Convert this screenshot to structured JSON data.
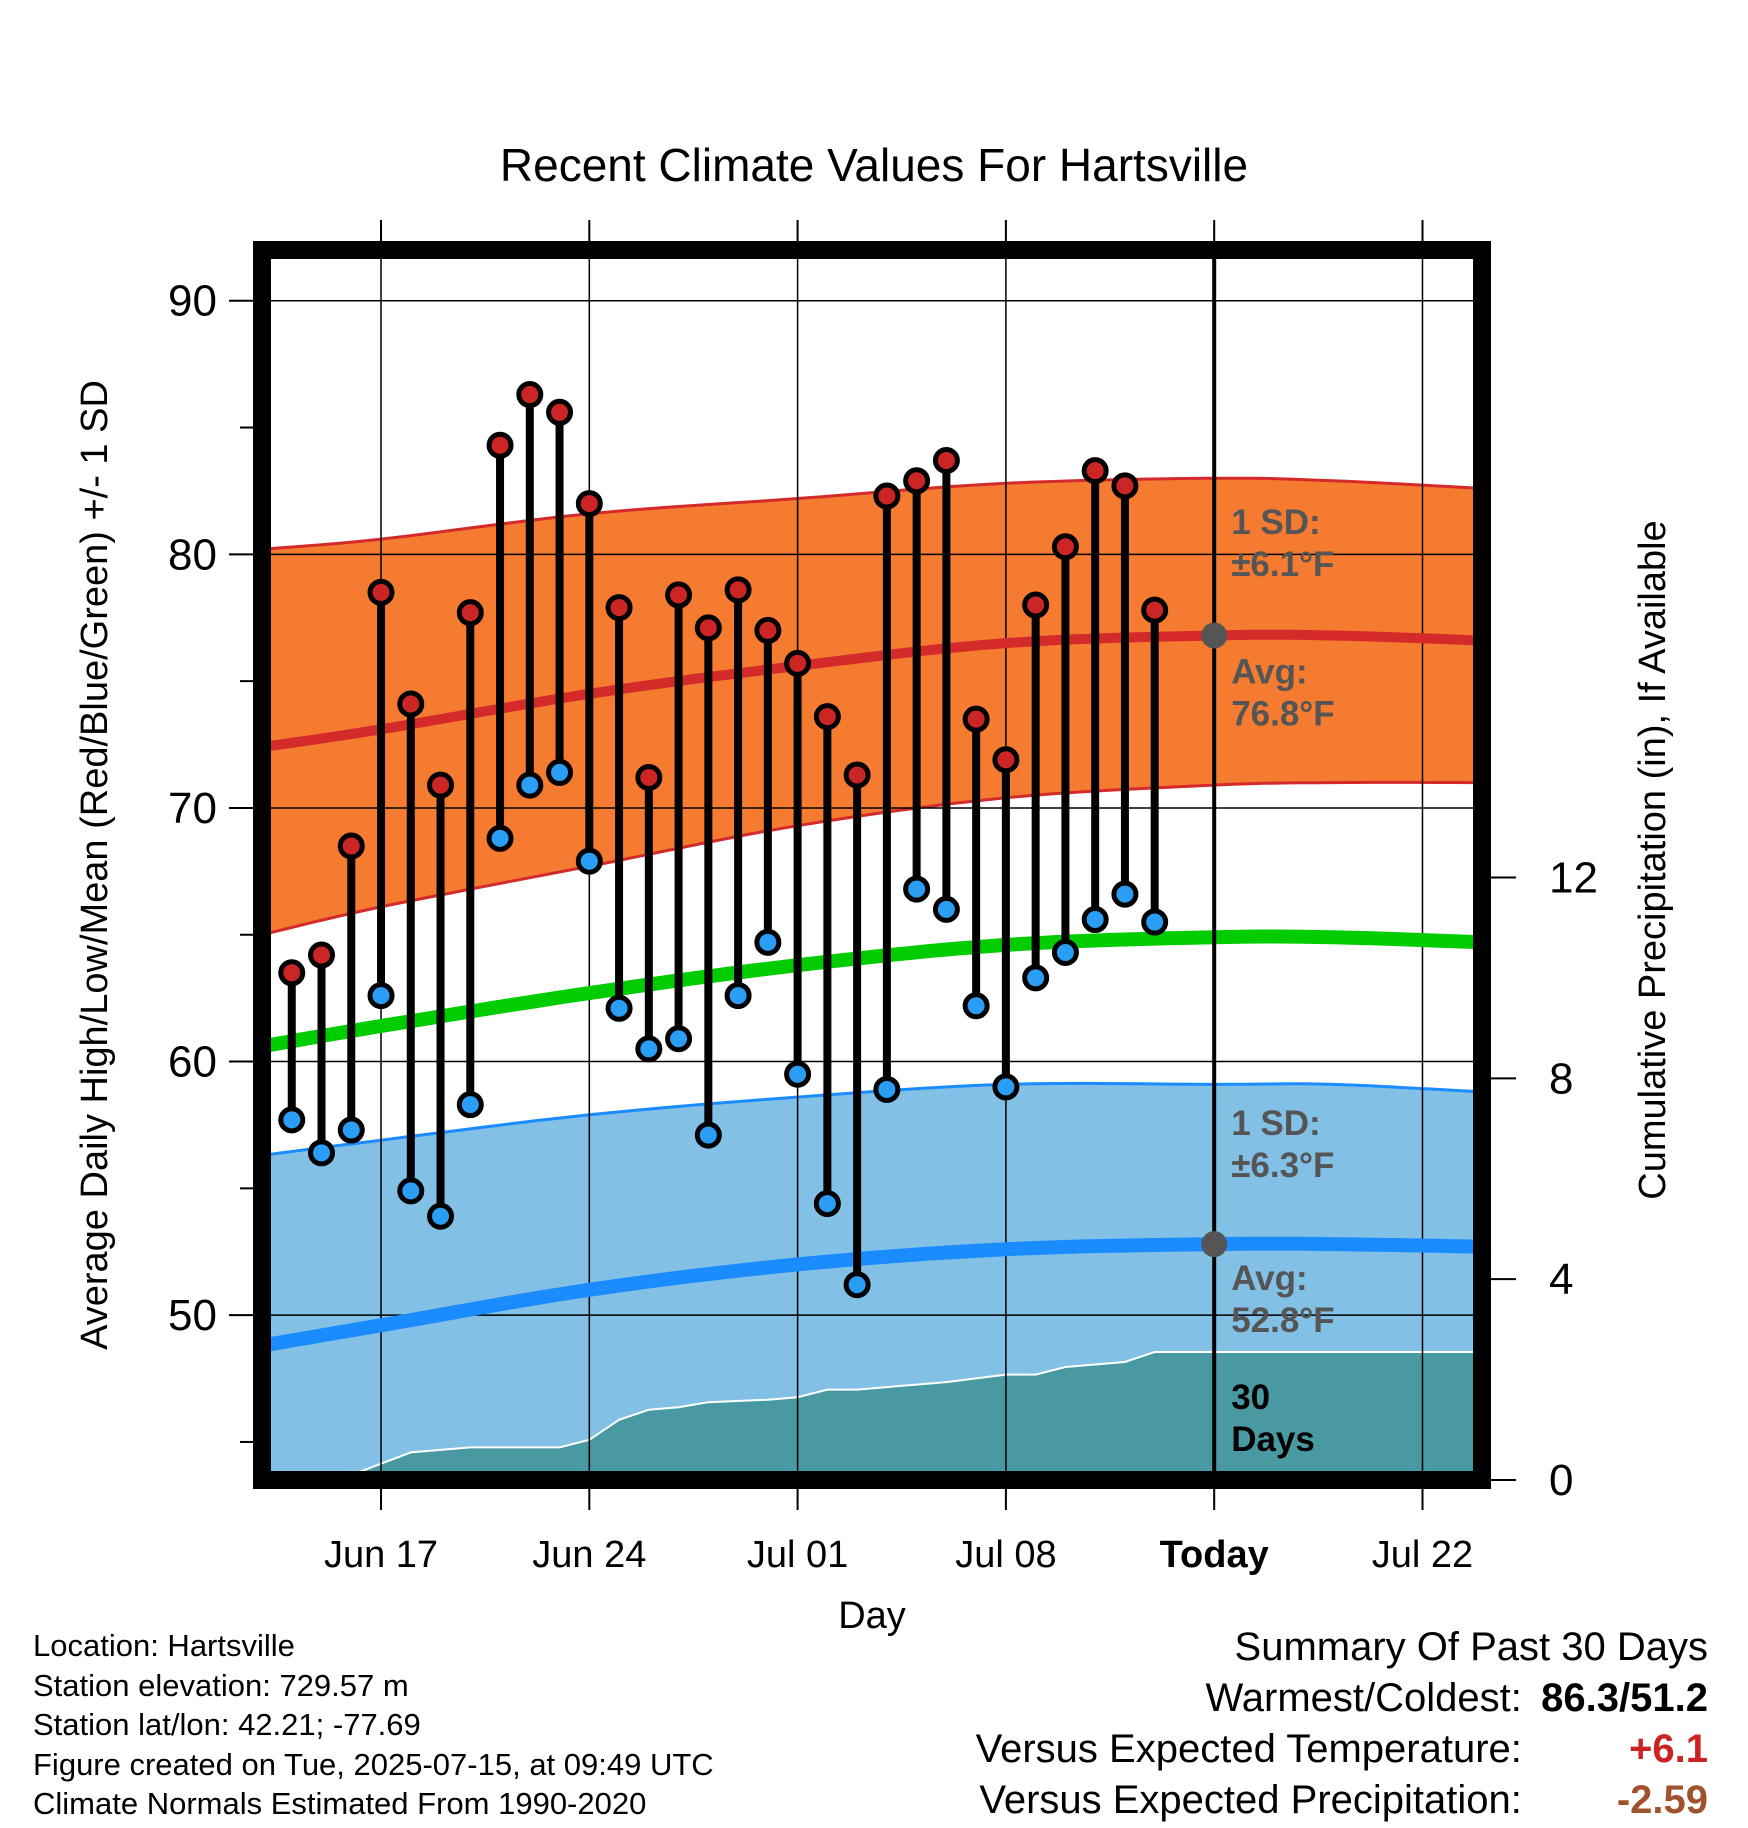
{
  "chart_data": {
    "type": "line",
    "title": "Recent Climate Values For Hartsville",
    "xlabel": "Day",
    "ylabel_left": "Average Daily High/Low/Mean (Red/Blue/Green) +/- 1 SD",
    "ylabel_right": "Cumulative Precipitation (in), If Available",
    "x_domain": [
      "2025-06-13",
      "2025-07-24"
    ],
    "ylim_left": [
      43.5,
      92
    ],
    "ylim_right": [
      0,
      24.5
    ],
    "x_ticks": [
      {
        "date": "2025-06-17",
        "label": "Jun 17",
        "bold": false
      },
      {
        "date": "2025-06-24",
        "label": "Jun 24",
        "bold": false
      },
      {
        "date": "2025-07-01",
        "label": "Jul 01",
        "bold": false
      },
      {
        "date": "2025-07-08",
        "label": "Jul 08",
        "bold": false
      },
      {
        "date": "2025-07-15",
        "label": "Today",
        "bold": true
      },
      {
        "date": "2025-07-22",
        "label": "Jul 22",
        "bold": false
      }
    ],
    "y_ticks_left": [
      50,
      60,
      70,
      80,
      90
    ],
    "y_minor_ticks_left": [
      45,
      55,
      65,
      75,
      85
    ],
    "y_ticks_right": [
      0,
      4,
      8,
      12
    ],
    "grid": true,
    "today": "2025-07-15",
    "colors": {
      "high_band": "#f47b30",
      "high_line": "#d42a2a",
      "high_point": "#cc2525",
      "low_band": "#82c0e6",
      "low_line": "#1a8cff",
      "low_point": "#2a9df4",
      "mean_line": "#00cc00",
      "precip_fill": "#4899a1",
      "annotation_text": "#555555",
      "today_marker": "#555555"
    },
    "normals": {
      "x": [
        "2025-06-13",
        "2025-06-17",
        "2025-06-24",
        "2025-07-01",
        "2025-07-08",
        "2025-07-15",
        "2025-07-19",
        "2025-07-24"
      ],
      "high_avg": [
        72.4,
        73.1,
        74.5,
        75.6,
        76.5,
        76.8,
        76.8,
        76.6
      ],
      "high_upper": [
        80.2,
        80.6,
        81.6,
        82.2,
        82.8,
        83.0,
        82.9,
        82.6
      ],
      "high_lower": [
        65.0,
        66.1,
        67.7,
        69.3,
        70.4,
        70.9,
        71.0,
        71.0
      ],
      "low_avg": [
        48.8,
        49.6,
        51.0,
        52.0,
        52.6,
        52.8,
        52.8,
        52.7
      ],
      "low_upper": [
        56.3,
        56.9,
        57.9,
        58.6,
        59.1,
        59.1,
        59.1,
        58.8
      ],
      "low_lower": [
        41.5,
        42.5,
        44.0,
        45.3,
        46.0,
        46.4,
        46.5,
        46.5
      ],
      "mean": [
        60.6,
        61.4,
        62.7,
        63.8,
        64.6,
        64.9,
        64.9,
        64.7
      ]
    },
    "series": [
      {
        "name": "High",
        "x": [
          "2025-06-14",
          "2025-06-15",
          "2025-06-16",
          "2025-06-17",
          "2025-06-18",
          "2025-06-19",
          "2025-06-20",
          "2025-06-21",
          "2025-06-22",
          "2025-06-23",
          "2025-06-24",
          "2025-06-25",
          "2025-06-26",
          "2025-06-27",
          "2025-06-28",
          "2025-06-29",
          "2025-06-30",
          "2025-07-01",
          "2025-07-02",
          "2025-07-03",
          "2025-07-04",
          "2025-07-05",
          "2025-07-06",
          "2025-07-07",
          "2025-07-08",
          "2025-07-09",
          "2025-07-10",
          "2025-07-11",
          "2025-07-12",
          "2025-07-13",
          "2025-07-14"
        ],
        "values": [
          63.5,
          64.2,
          68.5,
          78.5,
          74.1,
          70.9,
          77.7,
          84.3,
          86.3,
          85.6,
          82.0,
          77.9,
          71.2,
          78.4,
          77.1,
          78.6,
          77.0,
          75.7,
          73.6,
          71.3,
          82.3,
          82.9,
          83.7,
          73.5,
          71.9,
          78.0,
          80.3,
          83.3,
          82.7,
          77.8,
          0
        ]
      },
      {
        "name": "Low",
        "x": [
          "2025-06-14",
          "2025-06-15",
          "2025-06-16",
          "2025-06-17",
          "2025-06-18",
          "2025-06-19",
          "2025-06-20",
          "2025-06-21",
          "2025-06-22",
          "2025-06-23",
          "2025-06-24",
          "2025-06-25",
          "2025-06-26",
          "2025-06-27",
          "2025-06-28",
          "2025-06-29",
          "2025-06-30",
          "2025-07-01",
          "2025-07-02",
          "2025-07-03",
          "2025-07-04",
          "2025-07-05",
          "2025-07-06",
          "2025-07-07",
          "2025-07-08",
          "2025-07-09",
          "2025-07-10",
          "2025-07-11",
          "2025-07-12",
          "2025-07-13"
        ],
        "values": [
          57.7,
          56.4,
          57.3,
          62.6,
          54.9,
          53.9,
          58.3,
          68.8,
          70.9,
          71.4,
          67.9,
          62.1,
          60.5,
          60.9,
          57.1,
          62.6,
          64.7,
          59.5,
          54.4,
          51.2,
          58.9,
          66.8,
          66.0,
          62.2,
          59.0,
          63.3,
          64.3,
          65.6,
          66.6,
          65.5
        ]
      }
    ],
    "precip": {
      "x": [
        "2025-06-13",
        "2025-06-15",
        "2025-06-16",
        "2025-06-18",
        "2025-06-20",
        "2025-06-23",
        "2025-06-24",
        "2025-06-25",
        "2025-06-26",
        "2025-06-27",
        "2025-06-28",
        "2025-06-30",
        "2025-07-01",
        "2025-07-02",
        "2025-07-03",
        "2025-07-05",
        "2025-07-06",
        "2025-07-08",
        "2025-07-09",
        "2025-07-10",
        "2025-07-11",
        "2025-07-12",
        "2025-07-13",
        "2025-07-24"
      ],
      "values": [
        0,
        0,
        0.1,
        0.55,
        0.65,
        0.65,
        0.8,
        1.2,
        1.4,
        1.45,
        1.55,
        1.6,
        1.65,
        1.8,
        1.8,
        1.9,
        1.95,
        2.1,
        2.1,
        2.25,
        2.3,
        2.35,
        2.55,
        2.55
      ]
    },
    "annotations": {
      "high_sd": [
        "1 SD:",
        "±6.1°F"
      ],
      "high_avg": [
        "Avg:",
        "76.8°F"
      ],
      "low_sd": [
        "1 SD:",
        "±6.3°F"
      ],
      "low_avg": [
        "Avg:",
        "52.8°F"
      ],
      "precip_days": [
        "30",
        "Days"
      ]
    }
  },
  "footer": {
    "location": "Location: Hartsville",
    "elevation": "Station elevation: 729.57 m",
    "latlon": "Station lat/lon: 42.21; -77.69",
    "created": "Figure created on Tue, 2025-07-15, at 09:49 UTC",
    "normals": "Climate Normals Estimated From 1990-2020"
  },
  "summary": {
    "title": "Summary Of Past 30 Days",
    "warmest_label": "Warmest/Coldest:",
    "warmest_value": "86.3/51.2",
    "temp_label": "Versus Expected Temperature:",
    "temp_value": "+6.1",
    "temp_color": "#cc2222",
    "precip_label": "Versus Expected Precipitation:",
    "precip_value": "-2.59",
    "precip_color": "#a0522d"
  }
}
